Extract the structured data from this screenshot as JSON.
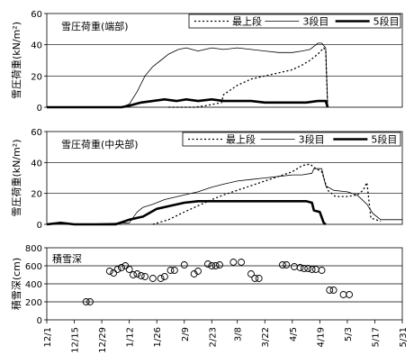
{
  "chart_data": [
    {
      "type": "line",
      "title": "雪圧荷重(端部)",
      "ylabel": "雪圧荷重(kN/m²)",
      "ylim": [
        0,
        60
      ],
      "yticks": [
        0,
        20,
        40,
        60
      ],
      "grid": "horizontal",
      "legend_position": "top-right",
      "series": [
        {
          "name": "最上段",
          "style": "dotted",
          "points": [
            [
              "2/1",
              0
            ],
            [
              "2/14",
              0
            ],
            [
              "2/20",
              1
            ],
            [
              "2/28",
              3
            ],
            [
              "3/1",
              8
            ],
            [
              "3/8",
              14
            ],
            [
              "3/15",
              18
            ],
            [
              "3/22",
              20
            ],
            [
              "3/29",
              22
            ],
            [
              "4/5",
              24
            ],
            [
              "4/10",
              27
            ],
            [
              "4/14",
              30
            ],
            [
              "4/18",
              34
            ],
            [
              "4/21",
              38
            ],
            [
              "4/22",
              36
            ],
            [
              "4/23",
              0
            ]
          ]
        },
        {
          "name": "3段目",
          "style": "thin",
          "points": [
            [
              "12/1",
              0
            ],
            [
              "1/8",
              0
            ],
            [
              "1/12",
              2
            ],
            [
              "1/16",
              10
            ],
            [
              "1/20",
              20
            ],
            [
              "1/24",
              26
            ],
            [
              "1/28",
              30
            ],
            [
              "2/1",
              34
            ],
            [
              "2/6",
              37
            ],
            [
              "2/10",
              38
            ],
            [
              "2/16",
              36
            ],
            [
              "2/23",
              38
            ],
            [
              "3/1",
              37
            ],
            [
              "3/8",
              38
            ],
            [
              "3/15",
              37
            ],
            [
              "3/22",
              36
            ],
            [
              "3/29",
              35
            ],
            [
              "4/5",
              35
            ],
            [
              "4/10",
              36
            ],
            [
              "4/14",
              37
            ],
            [
              "4/18",
              41
            ],
            [
              "4/20",
              41
            ],
            [
              "4/22",
              38
            ],
            [
              "4/23",
              0
            ]
          ]
        },
        {
          "name": "5段目",
          "style": "thick",
          "points": [
            [
              "12/1",
              0
            ],
            [
              "1/8",
              0
            ],
            [
              "1/12",
              1
            ],
            [
              "1/18",
              3
            ],
            [
              "1/24",
              4
            ],
            [
              "1/30",
              5
            ],
            [
              "2/5",
              4
            ],
            [
              "2/10",
              5
            ],
            [
              "2/16",
              4
            ],
            [
              "2/23",
              5
            ],
            [
              "3/1",
              4
            ],
            [
              "3/8",
              4
            ],
            [
              "3/15",
              4
            ],
            [
              "3/22",
              3
            ],
            [
              "3/29",
              3
            ],
            [
              "4/5",
              3
            ],
            [
              "4/12",
              3
            ],
            [
              "4/18",
              4
            ],
            [
              "4/22",
              4
            ],
            [
              "4/23",
              0
            ]
          ]
        }
      ]
    },
    {
      "type": "line",
      "title": "雪圧荷重(中央部)",
      "ylabel": "雪圧荷重(kN/m²)",
      "ylim": [
        0,
        60
      ],
      "yticks": [
        0,
        20,
        40,
        60
      ],
      "grid": "horizontal",
      "legend_position": "top-right",
      "series": [
        {
          "name": "最上段",
          "style": "dotted",
          "points": [
            [
              "1/24",
              0
            ],
            [
              "2/1",
              3
            ],
            [
              "2/9",
              8
            ],
            [
              "2/16",
              12
            ],
            [
              "2/23",
              16
            ],
            [
              "3/1",
              19
            ],
            [
              "3/8",
              22
            ],
            [
              "3/15",
              25
            ],
            [
              "3/22",
              28
            ],
            [
              "3/29",
              31
            ],
            [
              "4/5",
              34
            ],
            [
              "4/10",
              38
            ],
            [
              "4/14",
              39
            ],
            [
              "4/17",
              36
            ],
            [
              "4/20",
              34
            ],
            [
              "4/23",
              22
            ],
            [
              "4/27",
              18
            ],
            [
              "5/3",
              18
            ],
            [
              "5/8",
              19
            ],
            [
              "5/11",
              22
            ],
            [
              "5/13",
              27
            ],
            [
              "5/15",
              4
            ],
            [
              "5/20",
              2
            ]
          ]
        },
        {
          "name": "3段目",
          "style": "thin",
          "points": [
            [
              "12/1",
              0
            ],
            [
              "12/8",
              1
            ],
            [
              "12/15",
              0
            ],
            [
              "1/12",
              1
            ],
            [
              "1/16",
              8
            ],
            [
              "1/19",
              11
            ],
            [
              "1/24",
              13
            ],
            [
              "1/30",
              16
            ],
            [
              "2/9",
              19
            ],
            [
              "2/16",
              21
            ],
            [
              "2/23",
              24
            ],
            [
              "3/1",
              26
            ],
            [
              "3/8",
              28
            ],
            [
              "3/15",
              29
            ],
            [
              "3/22",
              30
            ],
            [
              "3/29",
              31
            ],
            [
              "4/5",
              32
            ],
            [
              "4/10",
              32
            ],
            [
              "4/15",
              33
            ],
            [
              "4/16",
              36
            ],
            [
              "4/20",
              36
            ],
            [
              "4/22",
              25
            ],
            [
              "4/26",
              22
            ],
            [
              "5/3",
              21
            ],
            [
              "5/8",
              19
            ],
            [
              "5/13",
              13
            ],
            [
              "5/16",
              7
            ],
            [
              "5/20",
              3
            ],
            [
              "5/31",
              3
            ]
          ]
        },
        {
          "name": "5段目",
          "style": "thick",
          "points": [
            [
              "12/1",
              0
            ],
            [
              "12/8",
              1
            ],
            [
              "12/15",
              0
            ],
            [
              "1/5",
              0
            ],
            [
              "1/12",
              3
            ],
            [
              "1/19",
              5
            ],
            [
              "1/26",
              10
            ],
            [
              "2/2",
              12
            ],
            [
              "2/9",
              14
            ],
            [
              "2/16",
              15
            ],
            [
              "3/1",
              15
            ],
            [
              "3/15",
              15
            ],
            [
              "3/29",
              15
            ],
            [
              "4/5",
              15
            ],
            [
              "4/12",
              15
            ],
            [
              "4/15",
              14
            ],
            [
              "4/16",
              9
            ],
            [
              "4/19",
              8
            ],
            [
              "4/21",
              1
            ],
            [
              "4/22",
              0
            ]
          ]
        }
      ]
    },
    {
      "type": "scatter",
      "title": "積雪深",
      "ylabel": "積雪深(cm)",
      "ylim": [
        0,
        800
      ],
      "yticks": [
        0,
        200,
        400,
        600,
        800
      ],
      "grid": "horizontal",
      "marker": "open-circle",
      "x_axis": {
        "tick_labels": [
          "12/1",
          "12/15",
          "12/29",
          "1/12",
          "1/26",
          "2/9",
          "2/23",
          "3/8",
          "3/22",
          "4/5",
          "4/19",
          "5/3",
          "5/17",
          "5/31"
        ]
      },
      "points": [
        [
          "12/21",
          200
        ],
        [
          "12/23",
          200
        ],
        [
          "1/2",
          540
        ],
        [
          "1/4",
          520
        ],
        [
          "1/6",
          560
        ],
        [
          "1/8",
          580
        ],
        [
          "1/10",
          600
        ],
        [
          "1/12",
          560
        ],
        [
          "1/14",
          500
        ],
        [
          "1/16",
          510
        ],
        [
          "1/18",
          490
        ],
        [
          "1/20",
          480
        ],
        [
          "1/24",
          460
        ],
        [
          "1/28",
          460
        ],
        [
          "1/30",
          480
        ],
        [
          "2/2",
          550
        ],
        [
          "2/4",
          550
        ],
        [
          "2/9",
          610
        ],
        [
          "2/14",
          510
        ],
        [
          "2/16",
          540
        ],
        [
          "2/21",
          620
        ],
        [
          "2/23",
          600
        ],
        [
          "2/25",
          600
        ],
        [
          "2/27",
          610
        ],
        [
          "3/6",
          640
        ],
        [
          "3/10",
          640
        ],
        [
          "3/15",
          510
        ],
        [
          "3/17",
          460
        ],
        [
          "3/19",
          460
        ],
        [
          "3/31",
          610
        ],
        [
          "4/2",
          610
        ],
        [
          "4/6",
          590
        ],
        [
          "4/9",
          580
        ],
        [
          "4/11",
          570
        ],
        [
          "4/13",
          570
        ],
        [
          "4/15",
          560
        ],
        [
          "4/17",
          560
        ],
        [
          "4/20",
          550
        ],
        [
          "4/24",
          330
        ],
        [
          "4/26",
          330
        ],
        [
          "5/1",
          280
        ],
        [
          "5/4",
          280
        ]
      ]
    }
  ]
}
